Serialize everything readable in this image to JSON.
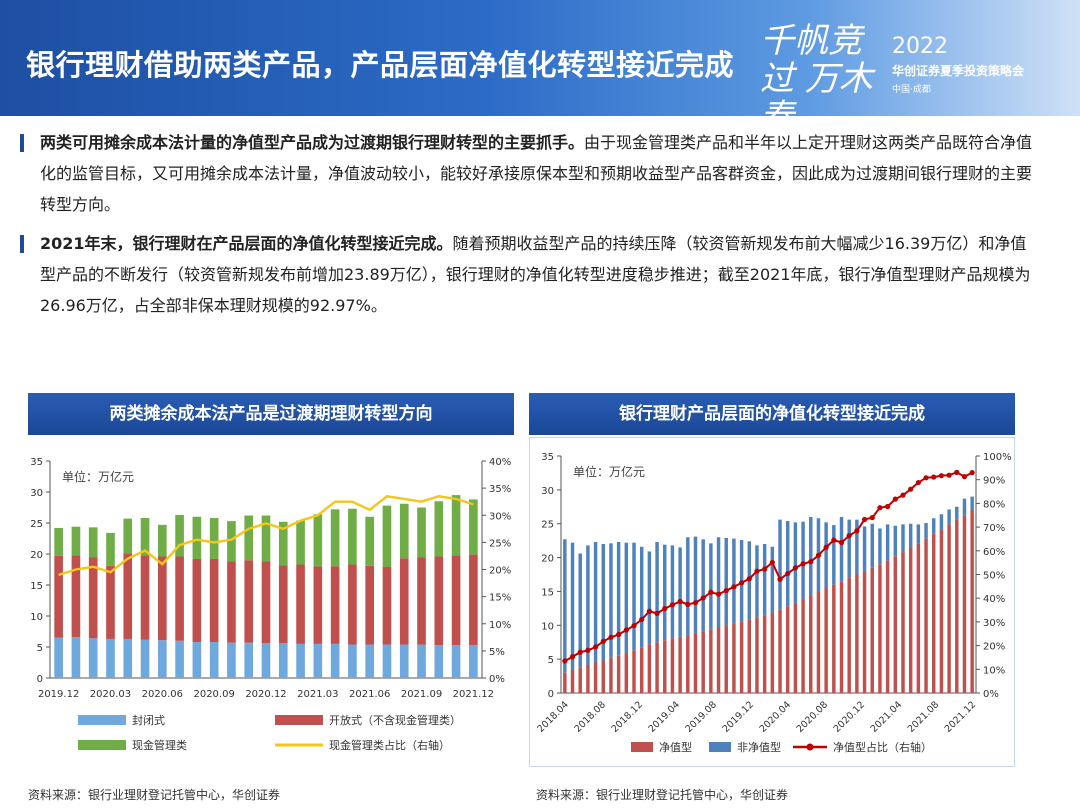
{
  "header": {
    "title": "银行理财借助两类产品，产品层面净值化转型接近完成",
    "slogan": "千帆竞过 万木春",
    "year": "2022",
    "conference": "华创证券夏季投资策略会",
    "location": "中国·成都"
  },
  "paragraphs": [
    {
      "bold": "两类可用摊余成本法计量的净值型产品成为过渡期银行理财转型的主要抓手。",
      "text": "由于现金管理类产品和半年以上定开理财这两类产品既符合净值化的监管目标，又可用摊余成本法计量，净值波动较小，能较好承接原保本型和预期收益型产品客群资金，因此成为过渡期间银行理财的主要转型方向。"
    },
    {
      "bold": "2021年末，银行理财在产品层面的净值化转型接近完成。",
      "text": "随着预期收益型产品的持续压降（较资管新规发布前大幅减少16.39万亿）和净值型产品的不断发行（较资管新规发布前增加23.89万亿），银行理财的净值化转型进度稳步推进；截至2021年底，银行净值型理财产品规模为26.96万亿，占全部非保本理财规模的92.97%。"
    }
  ],
  "panels": {
    "left_title": "两类摊余成本法产品是过渡期理财转型方向",
    "right_title": "银行理财产品层面的净值化转型接近完成",
    "left_source": "资料来源：银行业理财登记托管中心，华创证券",
    "right_source": "资料来源：银行业理财登记托管中心，华创证券"
  },
  "chart_data": [
    {
      "type": "bar",
      "stacked": true,
      "unit_label": "单位：万亿元",
      "x_tick_labels": [
        "2019.12",
        "2020.03",
        "2020.06",
        "2020.09",
        "2020.12",
        "2021.03",
        "2021.06",
        "2021.09",
        "2021.12"
      ],
      "ylim": [
        0,
        35
      ],
      "y_ticks": [
        "0",
        "5",
        "10",
        "15",
        "20",
        "25",
        "30",
        "35"
      ],
      "y2lim": [
        0,
        40
      ],
      "y2_ticks": [
        "0%",
        "5%",
        "10%",
        "15%",
        "20%",
        "25%",
        "30%",
        "35%",
        "40%"
      ],
      "n_points": 25,
      "series": [
        {
          "name": "封闭式",
          "color": "#6fa8dc",
          "axis": "left",
          "values": [
            6.5,
            6.6,
            6.4,
            6.3,
            6.3,
            6.2,
            6.1,
            6.0,
            5.8,
            5.8,
            5.7,
            5.7,
            5.6,
            5.6,
            5.5,
            5.5,
            5.5,
            5.4,
            5.4,
            5.4,
            5.4,
            5.4,
            5.3,
            5.3,
            5.3
          ]
        },
        {
          "name": "开放式（不含现金管理类）",
          "color": "#c0504d",
          "axis": "left",
          "values": [
            13.2,
            13.2,
            13.1,
            11.8,
            13.8,
            13.6,
            13.5,
            13.6,
            13.4,
            13.4,
            13.1,
            13.3,
            13.2,
            12.6,
            12.8,
            12.5,
            12.5,
            12.9,
            12.7,
            12.5,
            13.9,
            14.1,
            14.3,
            14.5,
            14.6
          ]
        },
        {
          "name": "现金管理类",
          "color": "#70ad47",
          "axis": "left",
          "values": [
            4.5,
            4.6,
            4.8,
            5.3,
            5.6,
            6.0,
            5.1,
            6.7,
            6.8,
            6.6,
            6.5,
            7.2,
            7.4,
            7.0,
            7.1,
            8.4,
            9.2,
            9.0,
            7.9,
            9.9,
            8.8,
            8.0,
            8.9,
            9.7,
            8.9
          ]
        },
        {
          "name": "现金管理类占比（右轴）",
          "color": "#f5c518",
          "axis": "right",
          "type": "line",
          "values": [
            19.0,
            20.0,
            20.5,
            19.5,
            22.0,
            23.5,
            21.0,
            24.5,
            25.5,
            25.0,
            25.5,
            27.5,
            28.5,
            27.5,
            29.0,
            30.0,
            32.5,
            32.5,
            31.0,
            33.5,
            33.0,
            32.5,
            33.5,
            33.0,
            32.0
          ]
        }
      ]
    },
    {
      "type": "bar",
      "stacked": true,
      "unit_label": "单位：万亿元",
      "x_tick_labels": [
        "2018.04",
        "2018.08",
        "2018.12",
        "2019.04",
        "2019.08",
        "2019.12",
        "2020.04",
        "2020.08",
        "2020.12",
        "2021.04",
        "2021.08",
        "2021.12"
      ],
      "ylim": [
        0,
        35
      ],
      "y_ticks": [
        "0",
        "5",
        "10",
        "15",
        "20",
        "25",
        "30",
        "35"
      ],
      "y2lim": [
        0,
        100
      ],
      "y2_ticks": [
        "0%",
        "10%",
        "20%",
        "30%",
        "40%",
        "50%",
        "60%",
        "70%",
        "80%",
        "90%",
        "100%"
      ],
      "series": [
        {
          "name": "净值型",
          "color": "#c0504d",
          "axis": "left",
          "values": [
            3.0,
            3.4,
            3.8,
            4.2,
            4.5,
            4.8,
            5.2,
            5.5,
            5.9,
            6.3,
            6.7,
            7.2,
            7.5,
            7.8,
            8.1,
            8.3,
            8.6,
            8.8,
            9.1,
            9.4,
            9.6,
            9.9,
            10.2,
            10.5,
            10.8,
            11.2,
            11.5,
            11.9,
            12.3,
            12.8,
            13.3,
            13.8,
            14.4,
            15.0,
            15.5,
            16.0,
            16.5,
            17.0,
            17.5,
            18.0,
            18.5,
            19.0,
            19.6,
            20.2,
            20.8,
            21.5,
            22.1,
            22.8,
            23.5,
            24.2,
            24.9,
            25.6,
            26.2,
            26.96
          ]
        },
        {
          "name": "非净值型",
          "color": "#4f81bd",
          "axis": "left",
          "values": [
            19.7,
            18.8,
            16.8,
            17.6,
            17.8,
            17.2,
            16.9,
            16.8,
            16.3,
            15.9,
            14.9,
            13.7,
            14.8,
            14.1,
            13.7,
            13.2,
            14.4,
            14.3,
            13.6,
            12.7,
            13.4,
            13.0,
            12.6,
            12.1,
            11.6,
            10.6,
            10.5,
            9.7,
            13.3,
            12.6,
            11.9,
            11.5,
            11.6,
            10.8,
            9.7,
            8.8,
            9.5,
            8.6,
            8.1,
            6.6,
            6.5,
            5.3,
            5.3,
            4.5,
            4.1,
            3.5,
            2.8,
            2.3,
            2.3,
            2.2,
            2.2,
            1.9,
            2.5,
            2.04
          ]
        },
        {
          "name": "净值型占比（右轴）",
          "color": "#c00000",
          "axis": "right",
          "type": "line",
          "values": [
            13.5,
            15.3,
            17.2,
            18.0,
            19.4,
            21.8,
            23.5,
            24.7,
            26.6,
            28.4,
            31.0,
            34.5,
            33.6,
            35.6,
            37.2,
            38.6,
            37.4,
            38.1,
            40.1,
            42.5,
            41.7,
            43.2,
            44.8,
            46.5,
            48.2,
            51.4,
            52.3,
            55.1,
            48.0,
            50.4,
            52.8,
            54.5,
            55.4,
            58.1,
            61.5,
            64.5,
            63.5,
            66.4,
            68.4,
            73.2,
            74.0,
            78.2,
            78.7,
            81.8,
            83.5,
            86.0,
            88.8,
            90.8,
            91.1,
            91.7,
            91.9,
            93.1,
            91.3,
            92.97
          ]
        }
      ]
    }
  ]
}
